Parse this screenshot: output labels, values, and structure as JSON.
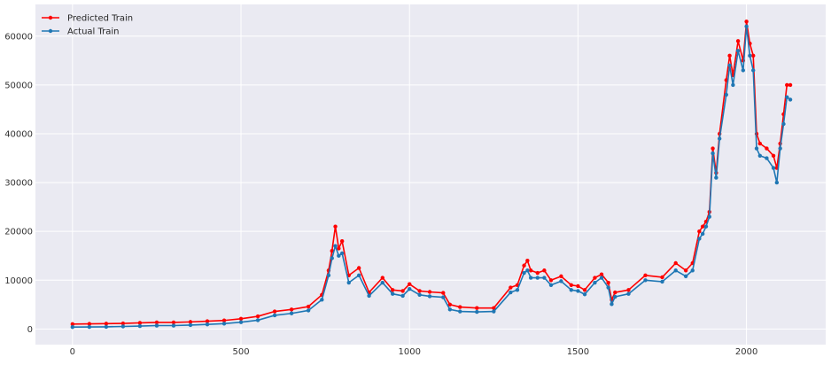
{
  "chart_data": {
    "type": "line",
    "title": "",
    "xlabel": "",
    "ylabel": "",
    "xlim": [
      -110,
      2235
    ],
    "ylim": [
      -3200,
      66500
    ],
    "x_ticks": [
      0,
      500,
      1000,
      1500,
      2000
    ],
    "y_ticks": [
      0,
      10000,
      20000,
      30000,
      40000,
      50000,
      60000
    ],
    "grid": true,
    "legend_position": "top-left",
    "colors": {
      "background": "#eaeaf2",
      "grid": "#ffffff",
      "predicted": "#ff0000",
      "actual": "#1f77b4"
    },
    "marker": "circle",
    "series": [
      {
        "name": "Predicted Train",
        "color": "#ff0000",
        "x": [
          0,
          50,
          100,
          150,
          200,
          250,
          300,
          350,
          400,
          450,
          500,
          550,
          600,
          650,
          700,
          740,
          760,
          770,
          780,
          790,
          800,
          820,
          850,
          880,
          920,
          950,
          980,
          1000,
          1030,
          1060,
          1100,
          1120,
          1150,
          1200,
          1250,
          1300,
          1320,
          1340,
          1350,
          1360,
          1380,
          1400,
          1420,
          1450,
          1480,
          1500,
          1520,
          1550,
          1570,
          1590,
          1600,
          1610,
          1650,
          1700,
          1750,
          1790,
          1820,
          1840,
          1860,
          1870,
          1880,
          1890,
          1900,
          1910,
          1920,
          1940,
          1950,
          1960,
          1975,
          1990,
          2000,
          2010,
          2020,
          2030,
          2040,
          2060,
          2080,
          2090,
          2100,
          2110,
          2120,
          2130
        ],
        "y": [
          1000,
          1050,
          1100,
          1150,
          1250,
          1350,
          1350,
          1450,
          1600,
          1750,
          2100,
          2600,
          3600,
          4000,
          4600,
          7000,
          12000,
          16000,
          21000,
          16500,
          18000,
          11000,
          12500,
          7500,
          10500,
          8000,
          7800,
          9200,
          7800,
          7600,
          7400,
          5000,
          4500,
          4300,
          4300,
          8500,
          9000,
          13000,
          14000,
          12000,
          11500,
          12000,
          10000,
          10800,
          9000,
          8800,
          8000,
          10500,
          11200,
          9500,
          6000,
          7500,
          8000,
          11000,
          10600,
          13500,
          12000,
          13500,
          20000,
          21000,
          22000,
          24000,
          37000,
          32000,
          40000,
          51000,
          56000,
          52000,
          59000,
          55000,
          63000,
          58500,
          56000,
          40000,
          38000,
          37000,
          35500,
          33000,
          38000,
          44000,
          50000,
          50000
        ]
      },
      {
        "name": "Actual Train",
        "color": "#1f77b4",
        "x": [
          0,
          50,
          100,
          150,
          200,
          250,
          300,
          350,
          400,
          450,
          500,
          550,
          600,
          650,
          700,
          740,
          760,
          770,
          780,
          790,
          800,
          820,
          850,
          880,
          920,
          950,
          980,
          1000,
          1030,
          1060,
          1100,
          1120,
          1150,
          1200,
          1250,
          1300,
          1320,
          1340,
          1350,
          1360,
          1380,
          1400,
          1420,
          1450,
          1480,
          1500,
          1520,
          1550,
          1570,
          1590,
          1600,
          1610,
          1650,
          1700,
          1750,
          1790,
          1820,
          1840,
          1860,
          1870,
          1880,
          1890,
          1900,
          1910,
          1920,
          1940,
          1950,
          1960,
          1975,
          1990,
          2000,
          2010,
          2020,
          2030,
          2040,
          2060,
          2080,
          2090,
          2100,
          2110,
          2120,
          2130
        ],
        "y": [
          400,
          420,
          450,
          520,
          600,
          700,
          700,
          800,
          950,
          1100,
          1400,
          1800,
          2800,
          3200,
          3800,
          6000,
          11000,
          14500,
          17000,
          15000,
          15500,
          9500,
          11000,
          6800,
          9500,
          7200,
          6800,
          8200,
          7000,
          6700,
          6500,
          4000,
          3600,
          3500,
          3600,
          7500,
          8000,
          11500,
          12000,
          10500,
          10500,
          10500,
          9000,
          9800,
          8000,
          7800,
          7100,
          9500,
          10500,
          8500,
          5100,
          6600,
          7200,
          10000,
          9700,
          12000,
          10800,
          12000,
          18500,
          19500,
          21000,
          23000,
          36000,
          31000,
          39000,
          48000,
          54000,
          50000,
          57000,
          53000,
          62000,
          56000,
          53000,
          37000,
          35500,
          35000,
          33000,
          30000,
          37000,
          42000,
          47500,
          47000
        ]
      }
    ]
  }
}
